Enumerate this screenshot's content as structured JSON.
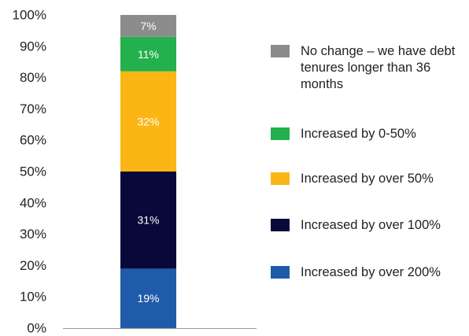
{
  "chart_data": {
    "type": "bar",
    "stacked": true,
    "ylim": [
      0,
      100
    ],
    "ytick_labels": [
      "0%",
      "10%",
      "20%",
      "30%",
      "40%",
      "50%",
      "60%",
      "70%",
      "80%",
      "90%",
      "100%"
    ],
    "title": "",
    "xlabel": "",
    "ylabel": "",
    "legend_position": "right",
    "series": [
      {
        "name": "Increased by over 200%",
        "value": 19,
        "label": "19%",
        "color": "#1f5ba8",
        "label_color": "#ffffff"
      },
      {
        "name": "Increased by over 100%",
        "value": 31,
        "label": "31%",
        "color": "#08083a",
        "label_color": "#ffffff"
      },
      {
        "name": "Increased by over 50%",
        "value": 32,
        "label": "32%",
        "color": "#fbb616",
        "label_color": "#ffffff"
      },
      {
        "name": "Increased by 0-50%",
        "value": 11,
        "label": "11%",
        "color": "#22b14c",
        "label_color": "#ffffff"
      },
      {
        "name": "No change – we have debt tenures longer than 36 months",
        "value": 7,
        "label": "7%",
        "color": "#8c8c8c",
        "label_color": "#ffffff"
      }
    ],
    "legend_order": [
      4,
      3,
      2,
      1,
      0
    ]
  }
}
